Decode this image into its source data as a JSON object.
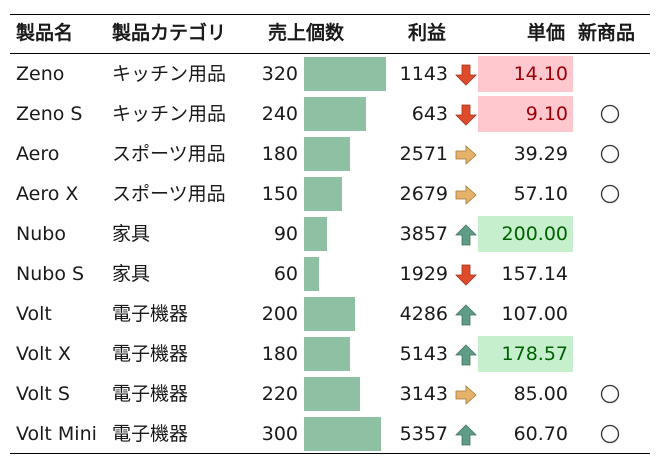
{
  "headers": {
    "name": "製品名",
    "category": "製品カテゴリ",
    "sales": "売上個数",
    "profit": "利益",
    "price": "単価",
    "new": "新商品"
  },
  "sales_bar_max": 320,
  "colors": {
    "bar": "#8ec1a3",
    "low_bg": "#ffc7ce",
    "low_text": "#9c0006",
    "high_bg": "#c6efce",
    "high_text": "#006100",
    "arrow_up": "#5e9c86",
    "arrow_side": "#e6b26a",
    "arrow_down": "#e04c2b"
  },
  "rows": [
    {
      "name": "Zeno",
      "category": "キッチン用品",
      "sales": 320,
      "profit": "1143",
      "trend": "down",
      "price": "14.10",
      "price_flag": "low",
      "is_new": false
    },
    {
      "name": "Zeno S",
      "category": "キッチン用品",
      "sales": 240,
      "profit": "643",
      "trend": "down",
      "price": "9.10",
      "price_flag": "low",
      "is_new": true
    },
    {
      "name": "Aero",
      "category": "スポーツ用品",
      "sales": 180,
      "profit": "2571",
      "trend": "side",
      "price": "39.29",
      "price_flag": "",
      "is_new": true
    },
    {
      "name": "Aero X",
      "category": "スポーツ用品",
      "sales": 150,
      "profit": "2679",
      "trend": "side",
      "price": "57.10",
      "price_flag": "",
      "is_new": true
    },
    {
      "name": "Nubo",
      "category": "家具",
      "sales": 90,
      "profit": "3857",
      "trend": "up",
      "price": "200.00",
      "price_flag": "high",
      "is_new": false
    },
    {
      "name": "Nubo S",
      "category": "家具",
      "sales": 60,
      "profit": "1929",
      "trend": "down",
      "price": "157.14",
      "price_flag": "",
      "is_new": false
    },
    {
      "name": "Volt",
      "category": "電子機器",
      "sales": 200,
      "profit": "4286",
      "trend": "up",
      "price": "107.00",
      "price_flag": "",
      "is_new": false
    },
    {
      "name": "Volt X",
      "category": "電子機器",
      "sales": 180,
      "profit": "5143",
      "trend": "up",
      "price": "178.57",
      "price_flag": "high",
      "is_new": false
    },
    {
      "name": "Volt S",
      "category": "電子機器",
      "sales": 220,
      "profit": "3143",
      "trend": "side",
      "price": "85.00",
      "price_flag": "",
      "is_new": true
    },
    {
      "name": "Volt Mini",
      "category": "電子機器",
      "sales": 300,
      "profit": "5357",
      "trend": "up",
      "price": "60.70",
      "price_flag": "",
      "is_new": true
    }
  ]
}
